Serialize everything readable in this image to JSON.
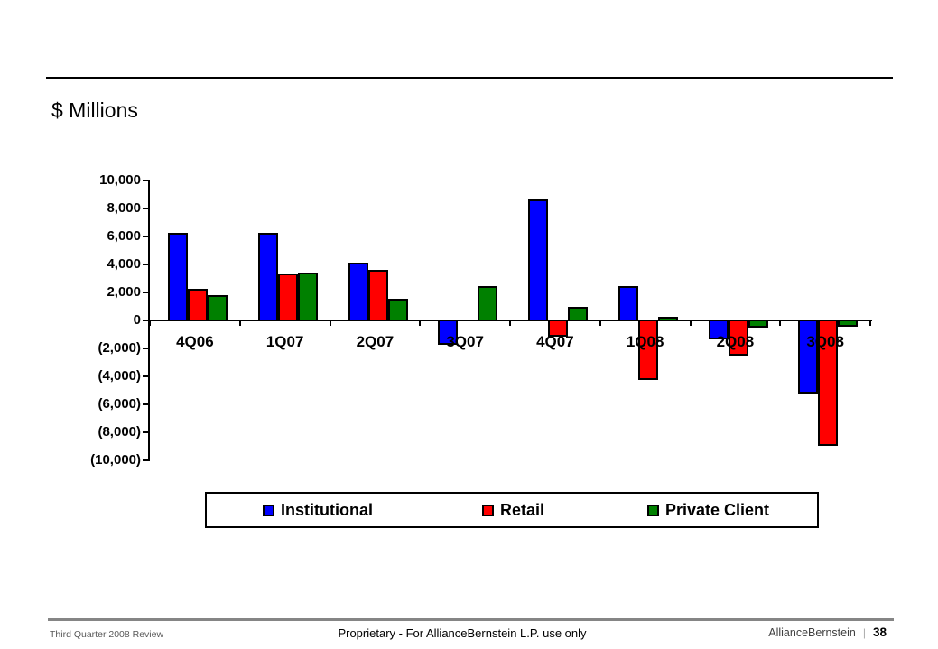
{
  "chart_data": {
    "type": "bar",
    "title": "$ Millions",
    "categories": [
      "4Q06",
      "1Q07",
      "2Q07",
      "3Q07",
      "4Q07",
      "1Q08",
      "2Q08",
      "3Q08"
    ],
    "series": [
      {
        "name": "Institutional",
        "color": "#0000FF",
        "values": [
          6300,
          6300,
          4200,
          -1800,
          8700,
          2500,
          -1400,
          -5300
        ]
      },
      {
        "name": "Retail",
        "color": "#FF0000",
        "values": [
          2300,
          3400,
          3700,
          0,
          -1200,
          -4300,
          -2600,
          -9000
        ]
      },
      {
        "name": "Private Client",
        "color": "#008000",
        "values": [
          1900,
          3500,
          1600,
          2500,
          1000,
          300,
          -600,
          -500
        ]
      }
    ],
    "ylabel": "$ Millions",
    "ylim": [
      -10000,
      10000
    ],
    "ytick_step": 2000,
    "ytick_labels": [
      "10,000",
      "8,000",
      "6,000",
      "4,000",
      "2,000",
      "0",
      "(2,000)",
      "(4,000)",
      "(6,000)",
      "(8,000)",
      "(10,000)"
    ],
    "grid": false,
    "legend_position": "bottom"
  },
  "footer": {
    "left": "Third Quarter 2008 Review",
    "center": "Proprietary - For AllianceBernstein L.P. use only",
    "brand": "AllianceBernstein",
    "separator": "|",
    "page_number": "38"
  }
}
